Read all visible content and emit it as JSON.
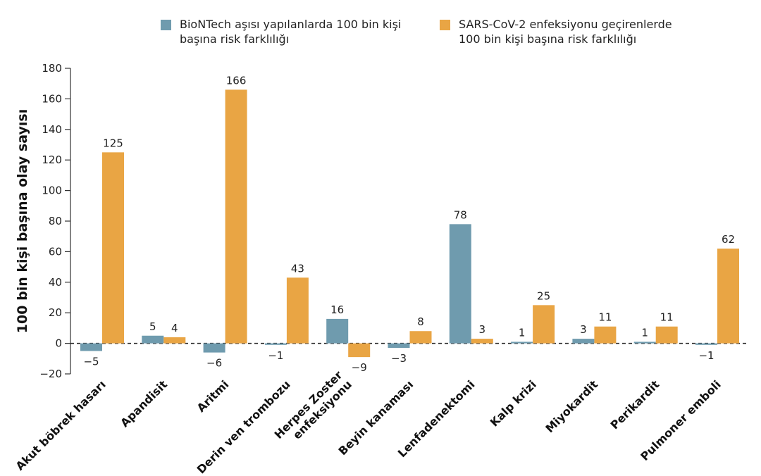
{
  "chart_data": {
    "type": "bar",
    "title": "",
    "ylabel": "100 bin kişi başına olay sayısı",
    "xlabel": "",
    "ylim": [
      -20,
      180
    ],
    "yticks": [
      "−20",
      "0",
      "20",
      "40",
      "60",
      "80",
      "100",
      "120",
      "140",
      "160",
      "180"
    ],
    "ytick_values": [
      -20,
      0,
      20,
      40,
      60,
      80,
      100,
      120,
      140,
      160,
      180
    ],
    "grid": false,
    "legend_position": "top",
    "categories": [
      "Akut böbrek hasarı",
      "Apandisit",
      "Aritmi",
      "Derin ven trombozu",
      "Herpes Zoster\nenfeksiyonu",
      "Beyin kanaması",
      "Lenfadenektomi",
      "Kalp krizi",
      "Miyokardit",
      "Perikardit",
      "Pulmoner emboli"
    ],
    "series": [
      {
        "name": "BioNTech aşısı yapılanlarda 100 bin kişi\nbaşına risk farklılığı",
        "color": "#6f9bae",
        "values": [
          -5,
          5,
          -6,
          -1,
          16,
          -3,
          78,
          1,
          3,
          1,
          -1
        ],
        "labels": [
          "−5",
          "5",
          "−6",
          "−1",
          "16",
          "−3",
          "78",
          "1",
          "3",
          "1",
          "−1"
        ]
      },
      {
        "name": "SARS-CoV-2 enfeksiyonu geçirenlerde\n100 bin kişi başına risk farklılığı",
        "color": "#e9a544",
        "values": [
          125,
          4,
          166,
          43,
          -9,
          8,
          3,
          25,
          11,
          11,
          62
        ],
        "labels": [
          "125",
          "4",
          "166",
          "43",
          "−9",
          "8",
          "3",
          "25",
          "11",
          "11",
          "62"
        ]
      }
    ]
  }
}
